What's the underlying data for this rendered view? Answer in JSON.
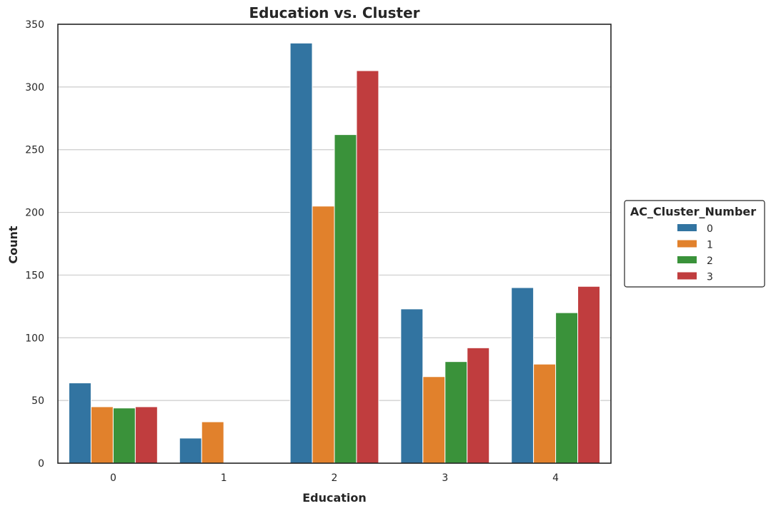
{
  "chart_data": {
    "type": "bar",
    "title": "Education vs. Cluster",
    "xlabel": "Education",
    "ylabel": "Count",
    "categories": [
      "0",
      "1",
      "2",
      "3",
      "4"
    ],
    "ylim": [
      0,
      350
    ],
    "yticks": [
      "0",
      "50",
      "100",
      "150",
      "200",
      "250",
      "300",
      "350"
    ],
    "grid": "horizontal",
    "legend": {
      "title": "AC_Cluster_Number",
      "placement": "outside right",
      "entries": [
        "0",
        "1",
        "2",
        "3"
      ]
    },
    "series": [
      {
        "name": "0",
        "color": "#3274a1",
        "values": [
          64,
          20,
          335,
          123,
          140
        ]
      },
      {
        "name": "1",
        "color": "#e1812c",
        "values": [
          45,
          33,
          205,
          69,
          79
        ]
      },
      {
        "name": "2",
        "color": "#3a923a",
        "values": [
          44,
          0,
          262,
          81,
          120
        ]
      },
      {
        "name": "3",
        "color": "#c03d3e",
        "values": [
          45,
          0,
          313,
          92,
          141
        ]
      }
    ]
  }
}
